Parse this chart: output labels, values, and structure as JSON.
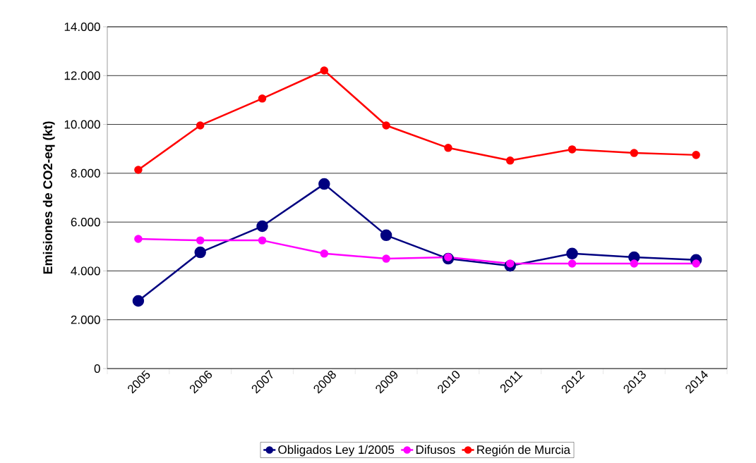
{
  "chart_data": {
    "type": "line",
    "ylabel": "Emisiones de CO2-eq (kt)",
    "categories": [
      "2005",
      "2006",
      "2007",
      "2008",
      "2009",
      "2010",
      "2011",
      "2012",
      "2013",
      "2014"
    ],
    "series": [
      {
        "name": "Obligados Ley 1/2005",
        "color": "#000080",
        "values": [
          2770,
          4760,
          5830,
          7560,
          5460,
          4500,
          4210,
          4710,
          4560,
          4450
        ]
      },
      {
        "name": "Difusos",
        "color": "#ff00ff",
        "values": [
          5310,
          5250,
          5250,
          4710,
          4500,
          4560,
          4300,
          4300,
          4300,
          4300
        ]
      },
      {
        "name": "Región de Murcia",
        "color": "#ff0000",
        "values": [
          8140,
          9960,
          11060,
          12210,
          9960,
          9040,
          8520,
          8980,
          8830,
          8750
        ]
      }
    ],
    "ylim": [
      0,
      14000
    ],
    "yticks": [
      0,
      {
        "value": 2000,
        "label": "2.000"
      },
      {
        "value": 4000,
        "label": "4.000"
      },
      {
        "value": 6000,
        "label": "6.000"
      },
      {
        "value": 8000,
        "label": "8.000"
      },
      {
        "value": 10000,
        "label": "10.000"
      },
      {
        "value": 12000,
        "label": "12.000"
      },
      {
        "value": 14000,
        "label": "14.000"
      }
    ],
    "grid": "y",
    "legend": "bottom",
    "marker": "circle",
    "line_style": "solid"
  }
}
